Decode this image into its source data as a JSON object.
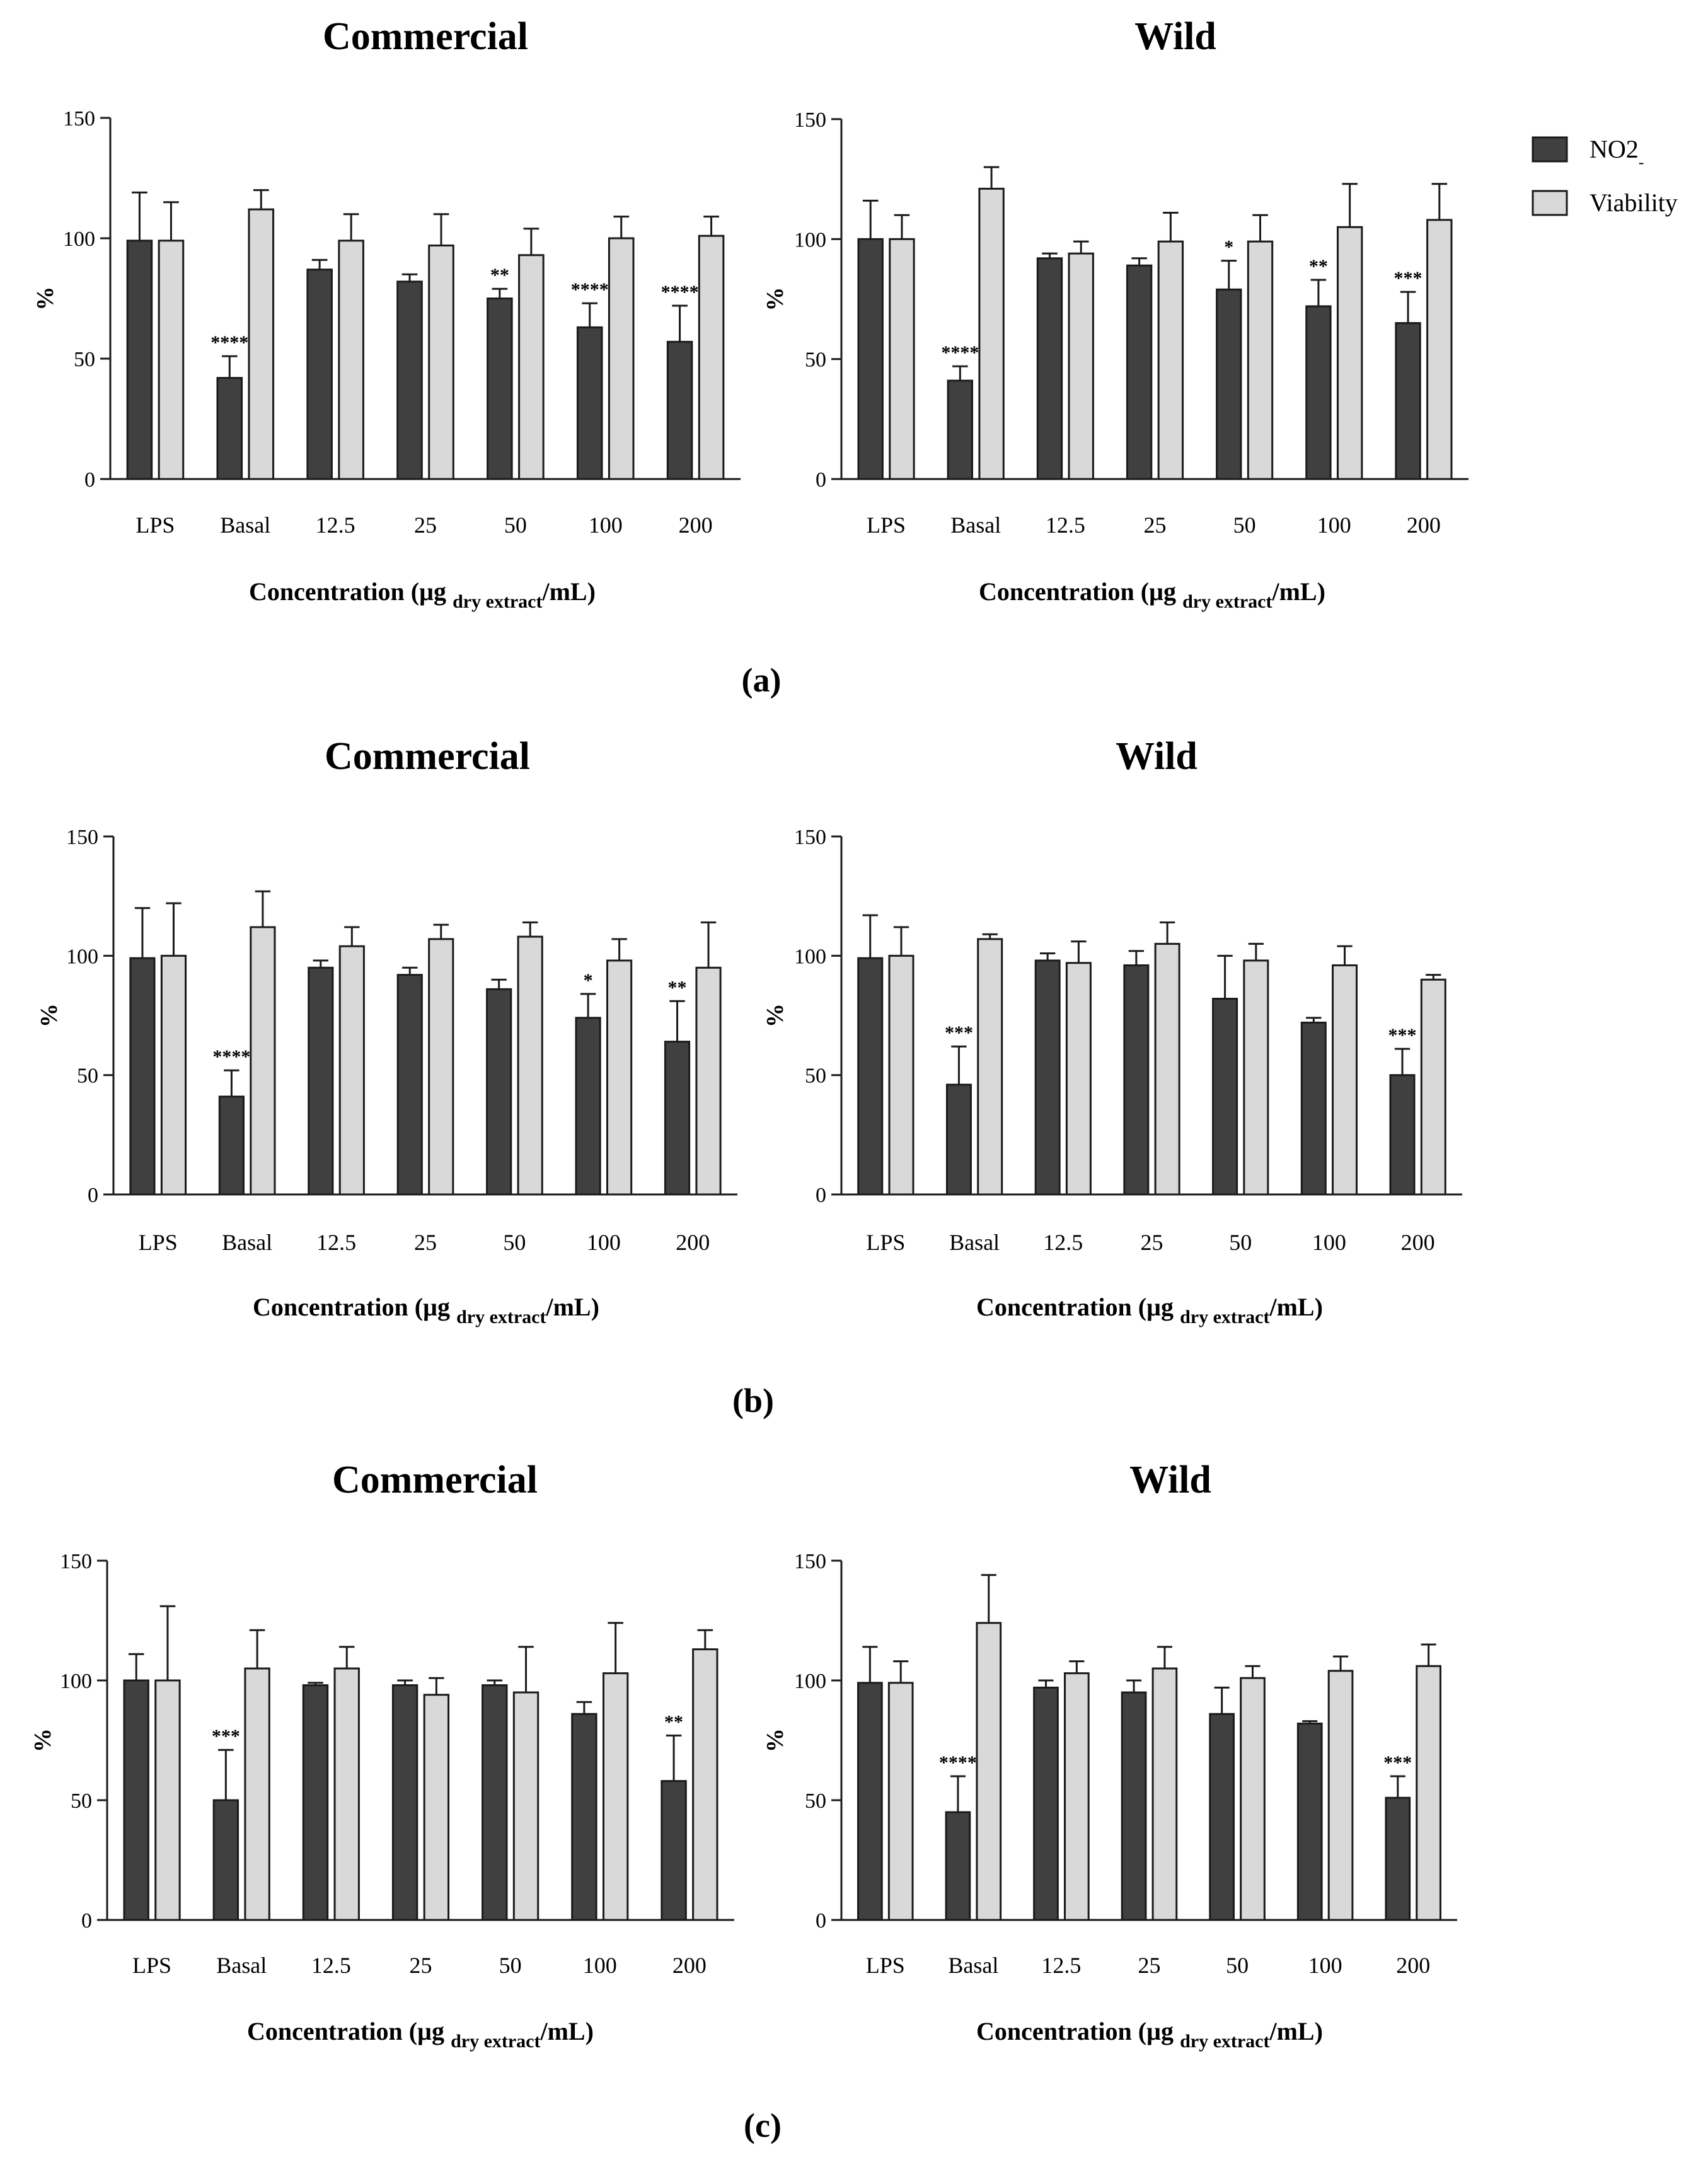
{
  "legend": {
    "entries": [
      {
        "name": "NO2",
        "superscript": "-",
        "color": "#404040"
      },
      {
        "name": "Viability",
        "color": "#d9d9d9"
      }
    ]
  },
  "panel_labels": [
    "(a)",
    "(b)",
    "(c)"
  ],
  "colors": {
    "no2": "#404040",
    "viability": "#d9d9d9",
    "stroke": "#1a1a1a"
  },
  "chart_data": [
    {
      "type": "bar",
      "panel": "(a)",
      "title": "Commercial",
      "categories": [
        "LPS",
        "Basal",
        "12.5",
        "25",
        "50",
        "100",
        "200"
      ],
      "xlabel": {
        "main": "Concentration (µg ",
        "sub": "dry extract",
        "tail": "/mL)"
      },
      "ylabel": "%",
      "ylim": [
        0,
        150
      ],
      "yticks": [
        0,
        50,
        100,
        150
      ],
      "series": [
        {
          "name": "NO2-",
          "values": [
            99,
            42,
            87,
            82,
            75,
            63,
            57
          ],
          "errors": [
            20,
            9,
            4,
            3,
            4,
            10,
            15
          ],
          "significance": [
            "",
            "****",
            "",
            "",
            "**",
            "****",
            "****"
          ]
        },
        {
          "name": "Viability",
          "values": [
            99,
            112,
            99,
            97,
            93,
            100,
            101
          ],
          "errors": [
            16,
            8,
            11,
            13,
            11,
            9,
            8
          ],
          "significance": [
            "",
            "",
            "",
            "",
            "",
            "",
            ""
          ]
        }
      ]
    },
    {
      "type": "bar",
      "panel": "(a)",
      "title": "Wild",
      "categories": [
        "LPS",
        "Basal",
        "12.5",
        "25",
        "50",
        "100",
        "200"
      ],
      "xlabel": {
        "main": "Concentration (µg ",
        "sub": "dry extract",
        "tail": "/mL)"
      },
      "ylabel": "%",
      "ylim": [
        0,
        150
      ],
      "yticks": [
        0,
        50,
        100,
        150
      ],
      "series": [
        {
          "name": "NO2-",
          "values": [
            100,
            41,
            92,
            89,
            79,
            72,
            65
          ],
          "errors": [
            16,
            6,
            2,
            3,
            12,
            11,
            13
          ],
          "significance": [
            "",
            "****",
            "",
            "",
            "*",
            "**",
            "***"
          ]
        },
        {
          "name": "Viability",
          "values": [
            100,
            121,
            94,
            99,
            99,
            105,
            108
          ],
          "errors": [
            10,
            9,
            5,
            12,
            11,
            18,
            15
          ],
          "significance": [
            "",
            "",
            "",
            "",
            "",
            "",
            ""
          ]
        }
      ]
    },
    {
      "type": "bar",
      "panel": "(b)",
      "title": "Commercial",
      "categories": [
        "LPS",
        "Basal",
        "12.5",
        "25",
        "50",
        "100",
        "200"
      ],
      "xlabel": {
        "main": "Concentration (µg ",
        "sub": "dry extract",
        "tail": "/mL)"
      },
      "ylabel": "%",
      "ylim": [
        0,
        150
      ],
      "yticks": [
        0,
        50,
        100,
        150
      ],
      "series": [
        {
          "name": "NO2-",
          "values": [
            99,
            41,
            95,
            92,
            86,
            74,
            64
          ],
          "errors": [
            21,
            11,
            3,
            3,
            4,
            10,
            17
          ],
          "significance": [
            "",
            "****",
            "",
            "",
            "",
            "*",
            "**"
          ]
        },
        {
          "name": "Viability",
          "values": [
            100,
            112,
            104,
            107,
            108,
            98,
            95
          ],
          "errors": [
            22,
            15,
            8,
            6,
            6,
            9,
            19
          ],
          "significance": [
            "",
            "",
            "",
            "",
            "",
            "",
            ""
          ]
        }
      ]
    },
    {
      "type": "bar",
      "panel": "(b)",
      "title": "Wild",
      "categories": [
        "LPS",
        "Basal",
        "12.5",
        "25",
        "50",
        "100",
        "200"
      ],
      "xlabel": {
        "main": "Concentration (µg ",
        "sub": "dry extract",
        "tail": "/mL)"
      },
      "ylabel": "%",
      "ylim": [
        0,
        150
      ],
      "yticks": [
        0,
        50,
        100,
        150
      ],
      "series": [
        {
          "name": "NO2-",
          "values": [
            99,
            46,
            98,
            96,
            82,
            72,
            50
          ],
          "errors": [
            18,
            16,
            3,
            6,
            18,
            2,
            11
          ],
          "significance": [
            "",
            "***",
            "",
            "",
            "",
            "",
            "***"
          ]
        },
        {
          "name": "Viability",
          "values": [
            100,
            107,
            97,
            105,
            98,
            96,
            90
          ],
          "errors": [
            12,
            2,
            9,
            9,
            7,
            8,
            2
          ],
          "significance": [
            "",
            "",
            "",
            "",
            "",
            "",
            ""
          ]
        }
      ]
    },
    {
      "type": "bar",
      "panel": "(c)",
      "title": "Commercial",
      "categories": [
        "LPS",
        "Basal",
        "12.5",
        "25",
        "50",
        "100",
        "200"
      ],
      "xlabel": {
        "main": "Concentration (µg ",
        "sub": "dry extract",
        "tail": "/mL)"
      },
      "ylabel": "%",
      "ylim": [
        0,
        150
      ],
      "yticks": [
        0,
        50,
        100,
        150
      ],
      "series": [
        {
          "name": "NO2-",
          "values": [
            100,
            50,
            98,
            98,
            98,
            86,
            58
          ],
          "errors": [
            11,
            21,
            1,
            2,
            2,
            5,
            19
          ],
          "significance": [
            "",
            "***",
            "",
            "",
            "",
            "",
            "**"
          ]
        },
        {
          "name": "Viability",
          "values": [
            100,
            105,
            105,
            94,
            95,
            103,
            113
          ],
          "errors": [
            31,
            16,
            9,
            7,
            19,
            21,
            8
          ],
          "significance": [
            "",
            "",
            "",
            "",
            "",
            "",
            ""
          ]
        }
      ]
    },
    {
      "type": "bar",
      "panel": "(c)",
      "title": "Wild",
      "categories": [
        "LPS",
        "Basal",
        "12.5",
        "25",
        "50",
        "100",
        "200"
      ],
      "xlabel": {
        "main": "Concentration (µg ",
        "sub": "dry extract",
        "tail": "/mL)"
      },
      "ylabel": "%",
      "ylim": [
        0,
        150
      ],
      "yticks": [
        0,
        50,
        100,
        150
      ],
      "series": [
        {
          "name": "NO2-",
          "values": [
            99,
            45,
            97,
            95,
            86,
            82,
            51
          ],
          "errors": [
            15,
            15,
            3,
            5,
            11,
            1,
            9
          ],
          "significance": [
            "",
            "****",
            "",
            "",
            "",
            "",
            "***"
          ]
        },
        {
          "name": "Viability",
          "values": [
            99,
            124,
            103,
            105,
            101,
            104,
            106
          ],
          "errors": [
            9,
            20,
            5,
            9,
            5,
            6,
            9
          ],
          "significance": [
            "",
            "",
            "",
            "",
            "",
            "",
            ""
          ]
        }
      ]
    }
  ]
}
